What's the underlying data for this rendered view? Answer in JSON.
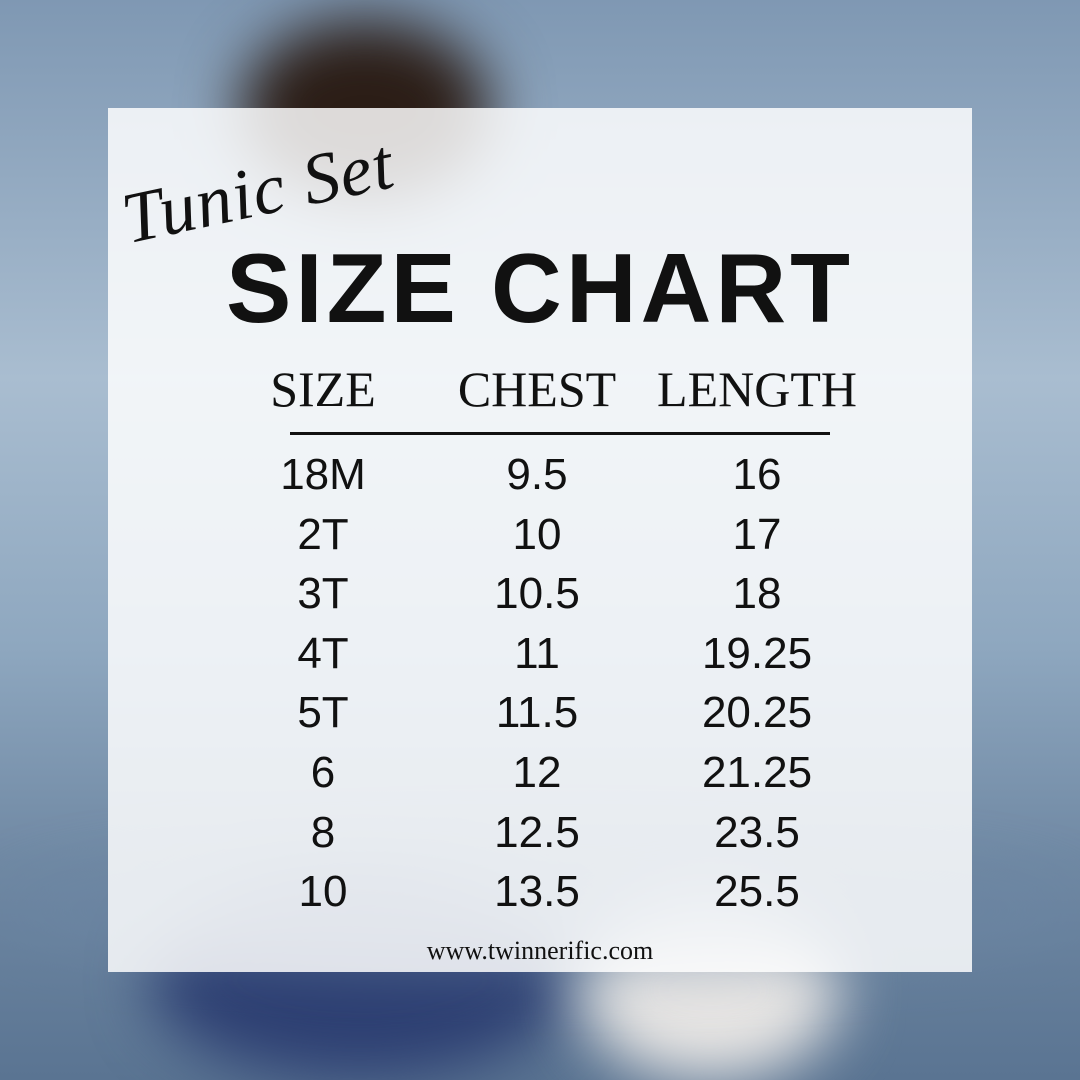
{
  "header": {
    "script_title": "Tunic Set",
    "title": "SIZE CHART"
  },
  "table": {
    "columns": [
      "SIZE",
      "CHEST",
      "LENGTH"
    ],
    "rows": [
      [
        "18M",
        "9.5",
        "16"
      ],
      [
        "2T",
        "10",
        "17"
      ],
      [
        "3T",
        "10.5",
        "18"
      ],
      [
        "4T",
        "11",
        "19.25"
      ],
      [
        "5T",
        "11.5",
        "20.25"
      ],
      [
        "6",
        "12",
        "21.25"
      ],
      [
        "8",
        "12.5",
        "23.5"
      ],
      [
        "10",
        "13.5",
        "25.5"
      ]
    ]
  },
  "footer": {
    "website": "www.twinnerific.com"
  },
  "colors": {
    "panel": "#ffffff",
    "text": "#111111",
    "background": "#8ea7bf"
  }
}
